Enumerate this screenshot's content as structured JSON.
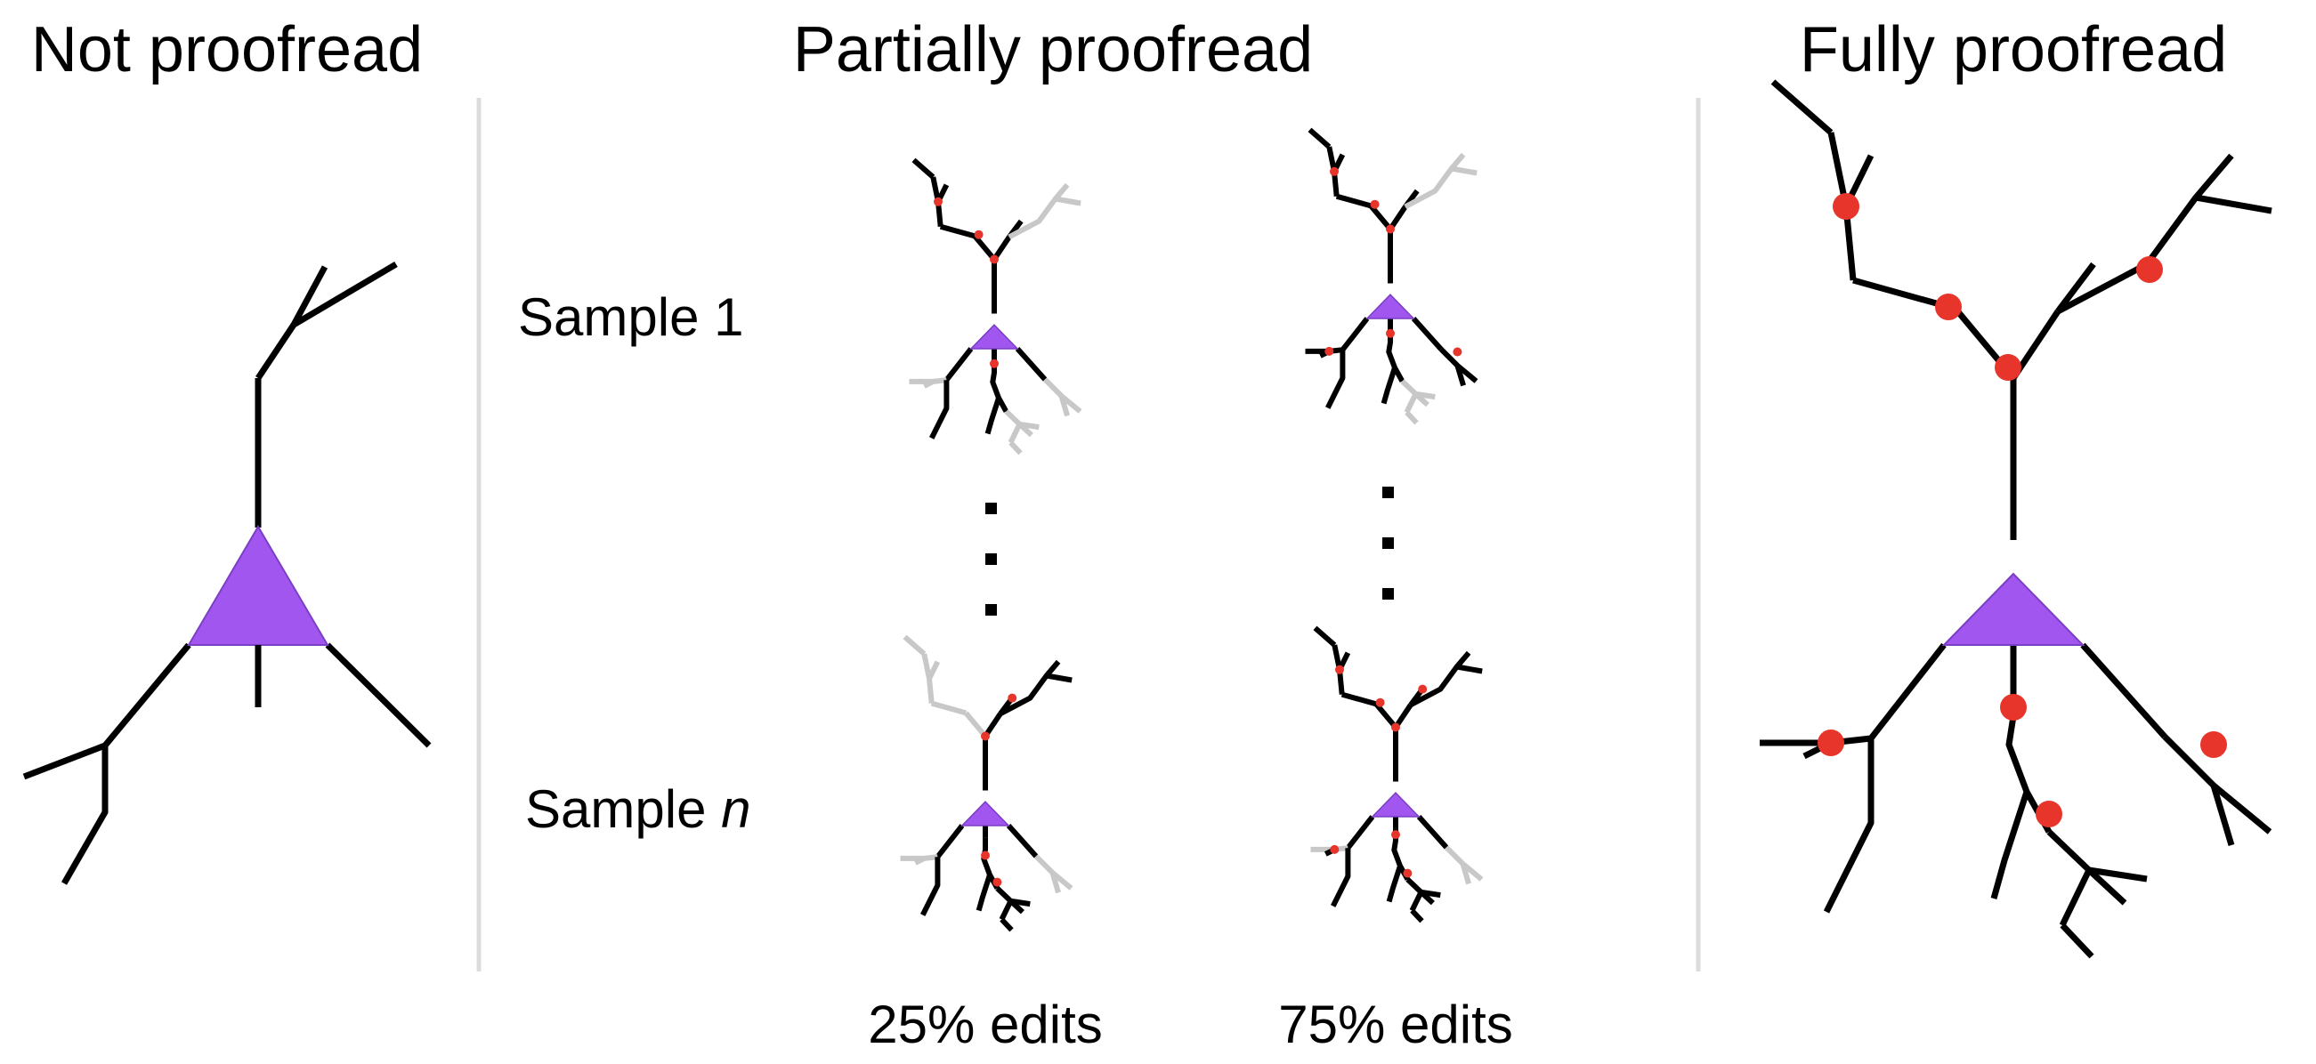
{
  "titles": {
    "left": "Not proofread",
    "middle": "Partially proofread",
    "right": "Fully proofread"
  },
  "samples": {
    "first": "Sample 1",
    "last_prefix": "Sample ",
    "last_var": "n"
  },
  "columns": {
    "low": "25% edits",
    "high": "75% edits"
  },
  "colors": {
    "soma": "#a156f0",
    "edit_dot": "#e8352b",
    "branch": "#000000",
    "unedited_branch": "#c8c8c8",
    "divider": "#dcdcdc"
  }
}
